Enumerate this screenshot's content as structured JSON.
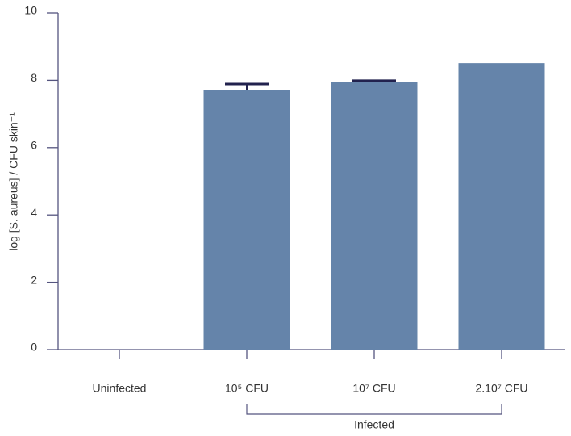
{
  "chart_data": {
    "type": "bar",
    "y_label": "log [S. aureus] / CFU skin⁻¹",
    "categories": [
      "Uninfected",
      "10⁵ CFU",
      "10⁷ CFU",
      "2.10⁷ CFU"
    ],
    "values": [
      null,
      7.72,
      7.94,
      8.51
    ],
    "errors": [
      null,
      0.17,
      0.05,
      null
    ],
    "color": "#6584aa",
    "error_color": "#22224e",
    "annotation": "Infected",
    "ylim": [
      0,
      10
    ],
    "yticks": [
      0,
      2,
      4,
      6,
      8,
      10
    ],
    "grid": false
  }
}
